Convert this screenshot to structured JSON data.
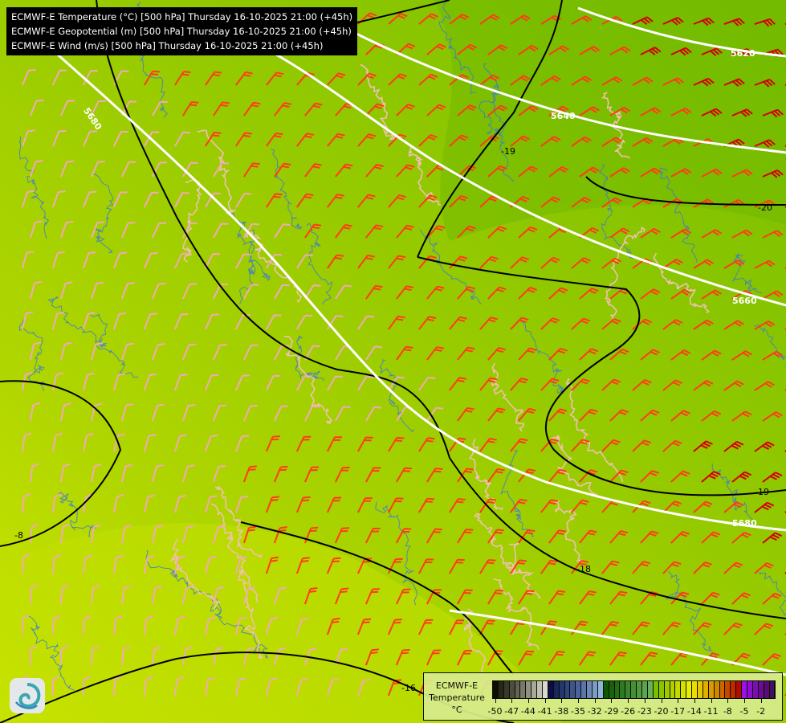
{
  "header": {
    "lines": [
      "ECMWF-E Temperature (°C) [500 hPa] Thursday 16-10-2025 21:00 (+45h)",
      "ECMWF-E Geopotential (m) [500 hPa] Thursday 16-10-2025 21:00 (+45h)",
      "ECMWF-E Wind (m/s) [500 hPa] Thursday 16-10-2025 21:00 (+45h)"
    ]
  },
  "map": {
    "geopotential_labels": [
      "5620",
      "5640",
      "5680",
      "5660",
      "5680"
    ],
    "temperature_labels": [
      "-19",
      "-20",
      "-18",
      "-19",
      "-16",
      "-8"
    ],
    "colors": {
      "geopotential_contour": "#ffffff",
      "temperature_contour": "#000000",
      "wind_strong": "#ff3c14",
      "wind_very_strong": "#d40000",
      "wind_weak": "#f4a8b8",
      "borders": "#f0c0b0",
      "rivers": "#3c78d8"
    }
  },
  "legend": {
    "model": "ECMWF-E",
    "variable": "Temperature",
    "unit": "°C",
    "tick_labels": [
      "-50",
      "-47",
      "-44",
      "-41",
      "-38",
      "-35",
      "-32",
      "-29",
      "-26",
      "-23",
      "-20",
      "-17",
      "-14",
      "-11",
      "-8",
      "-5",
      "-2"
    ],
    "colors": [
      "#000000",
      "#1a1a1a",
      "#2e2e2e",
      "#444444",
      "#5c5c5c",
      "#747474",
      "#8c8c8c",
      "#a6a6a6",
      "#c0c0c0",
      "#dcdcdc",
      "#000050",
      "#0c1c64",
      "#1a2c78",
      "#283c88",
      "#364c98",
      "#445ca8",
      "#5470b8",
      "#6684c8",
      "#7898d8",
      "#8cb4ec",
      "#005000",
      "#0c5c0c",
      "#186818",
      "#247424",
      "#308030",
      "#3c8c3c",
      "#489848",
      "#54a454",
      "#60b060",
      "#76be00",
      "#8ac400",
      "#9ecc00",
      "#b2d400",
      "#c6dc00",
      "#dae400",
      "#eef000",
      "#f0e000",
      "#ecc800",
      "#e6b000",
      "#de9800",
      "#d88000",
      "#d06000",
      "#c84000",
      "#c02000",
      "#b00000",
      "#a000ff",
      "#8c00e0",
      "#7800c0",
      "#6400a0",
      "#500080",
      "#40006c"
    ]
  },
  "logo": {
    "name": "ECMWF"
  }
}
